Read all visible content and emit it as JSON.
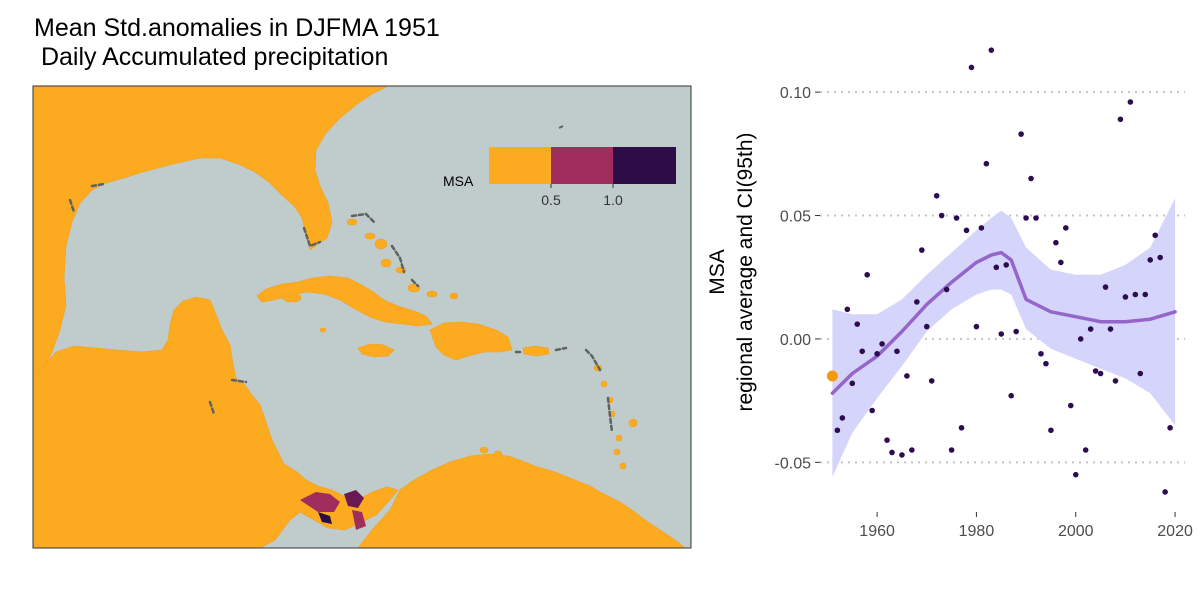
{
  "map": {
    "title_line1": "Mean Std.anomalies in DJFMA 1951",
    "title_line2": " Daily Accumulated precipitation",
    "colors": {
      "ocean": "#c0cbcb",
      "land": "#fcab21",
      "border": "#333333",
      "coast_dark": "#5f6260"
    },
    "legend": {
      "title": "MSA",
      "colors": [
        "#fcab21",
        "#a12d5c",
        "#2d0c47"
      ],
      "tick_labels": [
        "0.5",
        "1.0"
      ]
    }
  },
  "chart_data": {
    "type": "scatter",
    "ylabel_line1": "MSA",
    "ylabel_line2": "regional average and CI(95th)",
    "xlim": [
      1948.5,
      2022
    ],
    "ylim": [
      -0.0685,
      0.1195
    ],
    "x_ticks": [
      1960,
      1980,
      2000,
      2020
    ],
    "x_tick_labels": [
      "1960",
      "1980",
      "2000",
      "2020"
    ],
    "y_ticks": [
      -0.05,
      0.0,
      0.05,
      0.1
    ],
    "y_tick_labels": [
      "-0.05",
      "0.00",
      "0.05",
      "0.10"
    ],
    "grid": "horizontal dotted",
    "colors": {
      "points": "#2d0c52",
      "highlight": "#f59a0a",
      "smooth": "#9565c9",
      "ci_band": "#d5d4fa",
      "grid": "#c4c4c4"
    },
    "highlight_point": {
      "x": 1951,
      "y": -0.015
    },
    "points": [
      [
        1952,
        -0.037
      ],
      [
        1953,
        -0.032
      ],
      [
        1954,
        0.012
      ],
      [
        1955,
        -0.018
      ],
      [
        1956,
        0.006
      ],
      [
        1957,
        -0.005
      ],
      [
        1958,
        0.026
      ],
      [
        1959,
        -0.029
      ],
      [
        1960,
        -0.006
      ],
      [
        1961,
        -0.002
      ],
      [
        1962,
        -0.041
      ],
      [
        1963,
        -0.046
      ],
      [
        1964,
        -0.005
      ],
      [
        1965,
        -0.047
      ],
      [
        1966,
        -0.015
      ],
      [
        1967,
        -0.045
      ],
      [
        1968,
        0.015
      ],
      [
        1969,
        0.036
      ],
      [
        1970,
        0.005
      ],
      [
        1971,
        -0.017
      ],
      [
        1972,
        0.058
      ],
      [
        1973,
        0.05
      ],
      [
        1974,
        0.02
      ],
      [
        1975,
        -0.045
      ],
      [
        1976,
        0.049
      ],
      [
        1977,
        -0.036
      ],
      [
        1978,
        0.044
      ],
      [
        1979,
        0.11
      ],
      [
        1980,
        0.005
      ],
      [
        1981,
        0.045
      ],
      [
        1982,
        0.071
      ],
      [
        1983,
        0.117
      ],
      [
        1984,
        0.029
      ],
      [
        1985,
        0.002
      ],
      [
        1986,
        0.03
      ],
      [
        1987,
        -0.023
      ],
      [
        1988,
        0.003
      ],
      [
        1989,
        0.083
      ],
      [
        1990,
        0.049
      ],
      [
        1991,
        0.065
      ],
      [
        1992,
        0.049
      ],
      [
        1993,
        -0.006
      ],
      [
        1994,
        -0.01
      ],
      [
        1995,
        -0.037
      ],
      [
        1996,
        0.039
      ],
      [
        1997,
        0.031
      ],
      [
        1998,
        0.045
      ],
      [
        1999,
        -0.027
      ],
      [
        2000,
        -0.055
      ],
      [
        2001,
        0.0
      ],
      [
        2002,
        -0.045
      ],
      [
        2003,
        0.004
      ],
      [
        2004,
        -0.013
      ],
      [
        2005,
        -0.014
      ],
      [
        2006,
        0.021
      ],
      [
        2007,
        0.004
      ],
      [
        2008,
        -0.017
      ],
      [
        2009,
        0.089
      ],
      [
        2010,
        0.017
      ],
      [
        2011,
        0.096
      ],
      [
        2012,
        0.018
      ],
      [
        2013,
        -0.014
      ],
      [
        2014,
        0.018
      ],
      [
        2015,
        0.032
      ],
      [
        2016,
        0.042
      ],
      [
        2017,
        0.033
      ],
      [
        2018,
        -0.062
      ],
      [
        2019,
        -0.036
      ]
    ],
    "smooth": {
      "x": [
        1951,
        1955,
        1960,
        1965,
        1970,
        1975,
        1980,
        1983,
        1985,
        1987,
        1990,
        1995,
        2000,
        2005,
        2010,
        2015,
        2020
      ],
      "y": [
        -0.022,
        -0.014,
        -0.007,
        0.003,
        0.014,
        0.023,
        0.031,
        0.034,
        0.035,
        0.032,
        0.016,
        0.011,
        0.009,
        0.007,
        0.007,
        0.008,
        0.011
      ],
      "lower": [
        -0.056,
        -0.038,
        -0.024,
        -0.011,
        0.003,
        0.012,
        0.018,
        0.02,
        0.02,
        0.018,
        0.004,
        -0.004,
        -0.008,
        -0.012,
        -0.016,
        -0.022,
        -0.035
      ],
      "upper": [
        0.012,
        0.01,
        0.01,
        0.016,
        0.026,
        0.035,
        0.044,
        0.049,
        0.052,
        0.049,
        0.037,
        0.028,
        0.026,
        0.026,
        0.03,
        0.037,
        0.057
      ]
    }
  }
}
